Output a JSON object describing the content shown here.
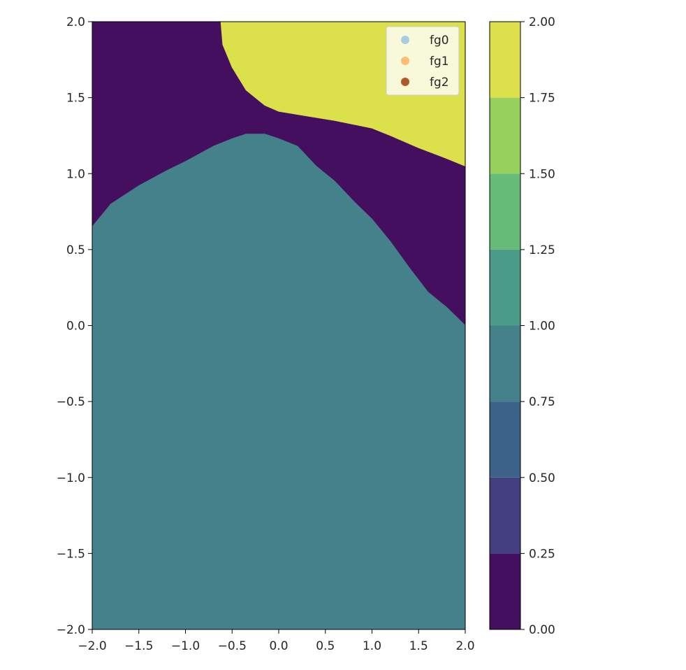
{
  "chart_data": {
    "type": "heatmap",
    "subtype": "filled-contour",
    "title": "",
    "xlabel": "",
    "ylabel": "",
    "xlim": [
      -2.0,
      2.0
    ],
    "ylim": [
      -2.0,
      2.0
    ],
    "grid": false,
    "x_tick_labels": [
      "−2.0",
      "−1.5",
      "−1.0",
      "−0.5",
      "0.0",
      "0.5",
      "1.0",
      "1.5",
      "2.0"
    ],
    "x_tick_values": [
      -2.0,
      -1.5,
      -1.0,
      -0.5,
      0.0,
      0.5,
      1.0,
      1.5,
      2.0
    ],
    "y_tick_labels": [
      "2.0",
      "1.5",
      "1.0",
      "0.5",
      "0.0",
      "−0.5",
      "−1.0",
      "−1.5",
      "−2.0"
    ],
    "y_tick_values": [
      2.0,
      1.5,
      1.0,
      0.5,
      0.0,
      -0.5,
      -1.0,
      -1.5,
      -2.0
    ],
    "levels": [
      0.0,
      0.25,
      0.5,
      0.75,
      1.0,
      1.25,
      1.5,
      1.75,
      2.0
    ],
    "level_colors": [
      "#440f5f",
      "#423e7f",
      "#3d6289",
      "#44818a",
      "#4b9c88",
      "#66bb77",
      "#95d05c",
      "#dbe04b"
    ],
    "regions": [
      {
        "class_value": 1,
        "level_band": [
          0.75,
          1.0
        ],
        "color": "#44818a",
        "boundary": [
          [
            -2.0,
            0.65
          ],
          [
            -1.8,
            0.8
          ],
          [
            -1.5,
            0.92
          ],
          [
            -1.2,
            1.02
          ],
          [
            -1.0,
            1.08
          ],
          [
            -0.7,
            1.18
          ],
          [
            -0.5,
            1.23
          ],
          [
            -0.35,
            1.26
          ],
          [
            -0.15,
            1.26
          ],
          [
            0.0,
            1.23
          ],
          [
            0.2,
            1.18
          ],
          [
            0.4,
            1.05
          ],
          [
            0.6,
            0.95
          ],
          [
            0.8,
            0.82
          ],
          [
            1.0,
            0.7
          ],
          [
            1.2,
            0.55
          ],
          [
            1.4,
            0.38
          ],
          [
            1.6,
            0.22
          ],
          [
            1.8,
            0.12
          ],
          [
            2.0,
            0.0
          ],
          [
            2.0,
            -2.0
          ],
          [
            -2.0,
            -2.0
          ]
        ]
      },
      {
        "class_value": 2,
        "level_band": [
          1.75,
          2.0
        ],
        "color": "#dbe04b",
        "boundary": [
          [
            -0.62,
            2.0
          ],
          [
            -0.6,
            1.85
          ],
          [
            -0.5,
            1.7
          ],
          [
            -0.35,
            1.55
          ],
          [
            -0.15,
            1.45
          ],
          [
            0.0,
            1.41
          ],
          [
            0.3,
            1.38
          ],
          [
            0.6,
            1.35
          ],
          [
            1.0,
            1.3
          ],
          [
            1.2,
            1.25
          ],
          [
            1.5,
            1.17
          ],
          [
            1.8,
            1.1
          ],
          [
            2.0,
            1.05
          ],
          [
            2.0,
            2.0
          ]
        ]
      }
    ],
    "background_region": {
      "class_value": 0,
      "level_band": [
        0.0,
        0.25
      ],
      "color": "#440f5f"
    },
    "legend": {
      "placement": "upper-right",
      "entries": [
        {
          "name": "fg0",
          "color": "#a6cee3"
        },
        {
          "name": "fg1",
          "color": "#fdbf6f"
        },
        {
          "name": "fg2",
          "color": "#b15928"
        }
      ]
    },
    "colorbar": {
      "placement": "right",
      "tick_labels": [
        "0.00",
        "0.25",
        "0.50",
        "0.75",
        "1.00",
        "1.25",
        "1.50",
        "1.75",
        "2.00"
      ],
      "tick_values": [
        0.0,
        0.25,
        0.5,
        0.75,
        1.0,
        1.25,
        1.5,
        1.75,
        2.0
      ]
    }
  }
}
